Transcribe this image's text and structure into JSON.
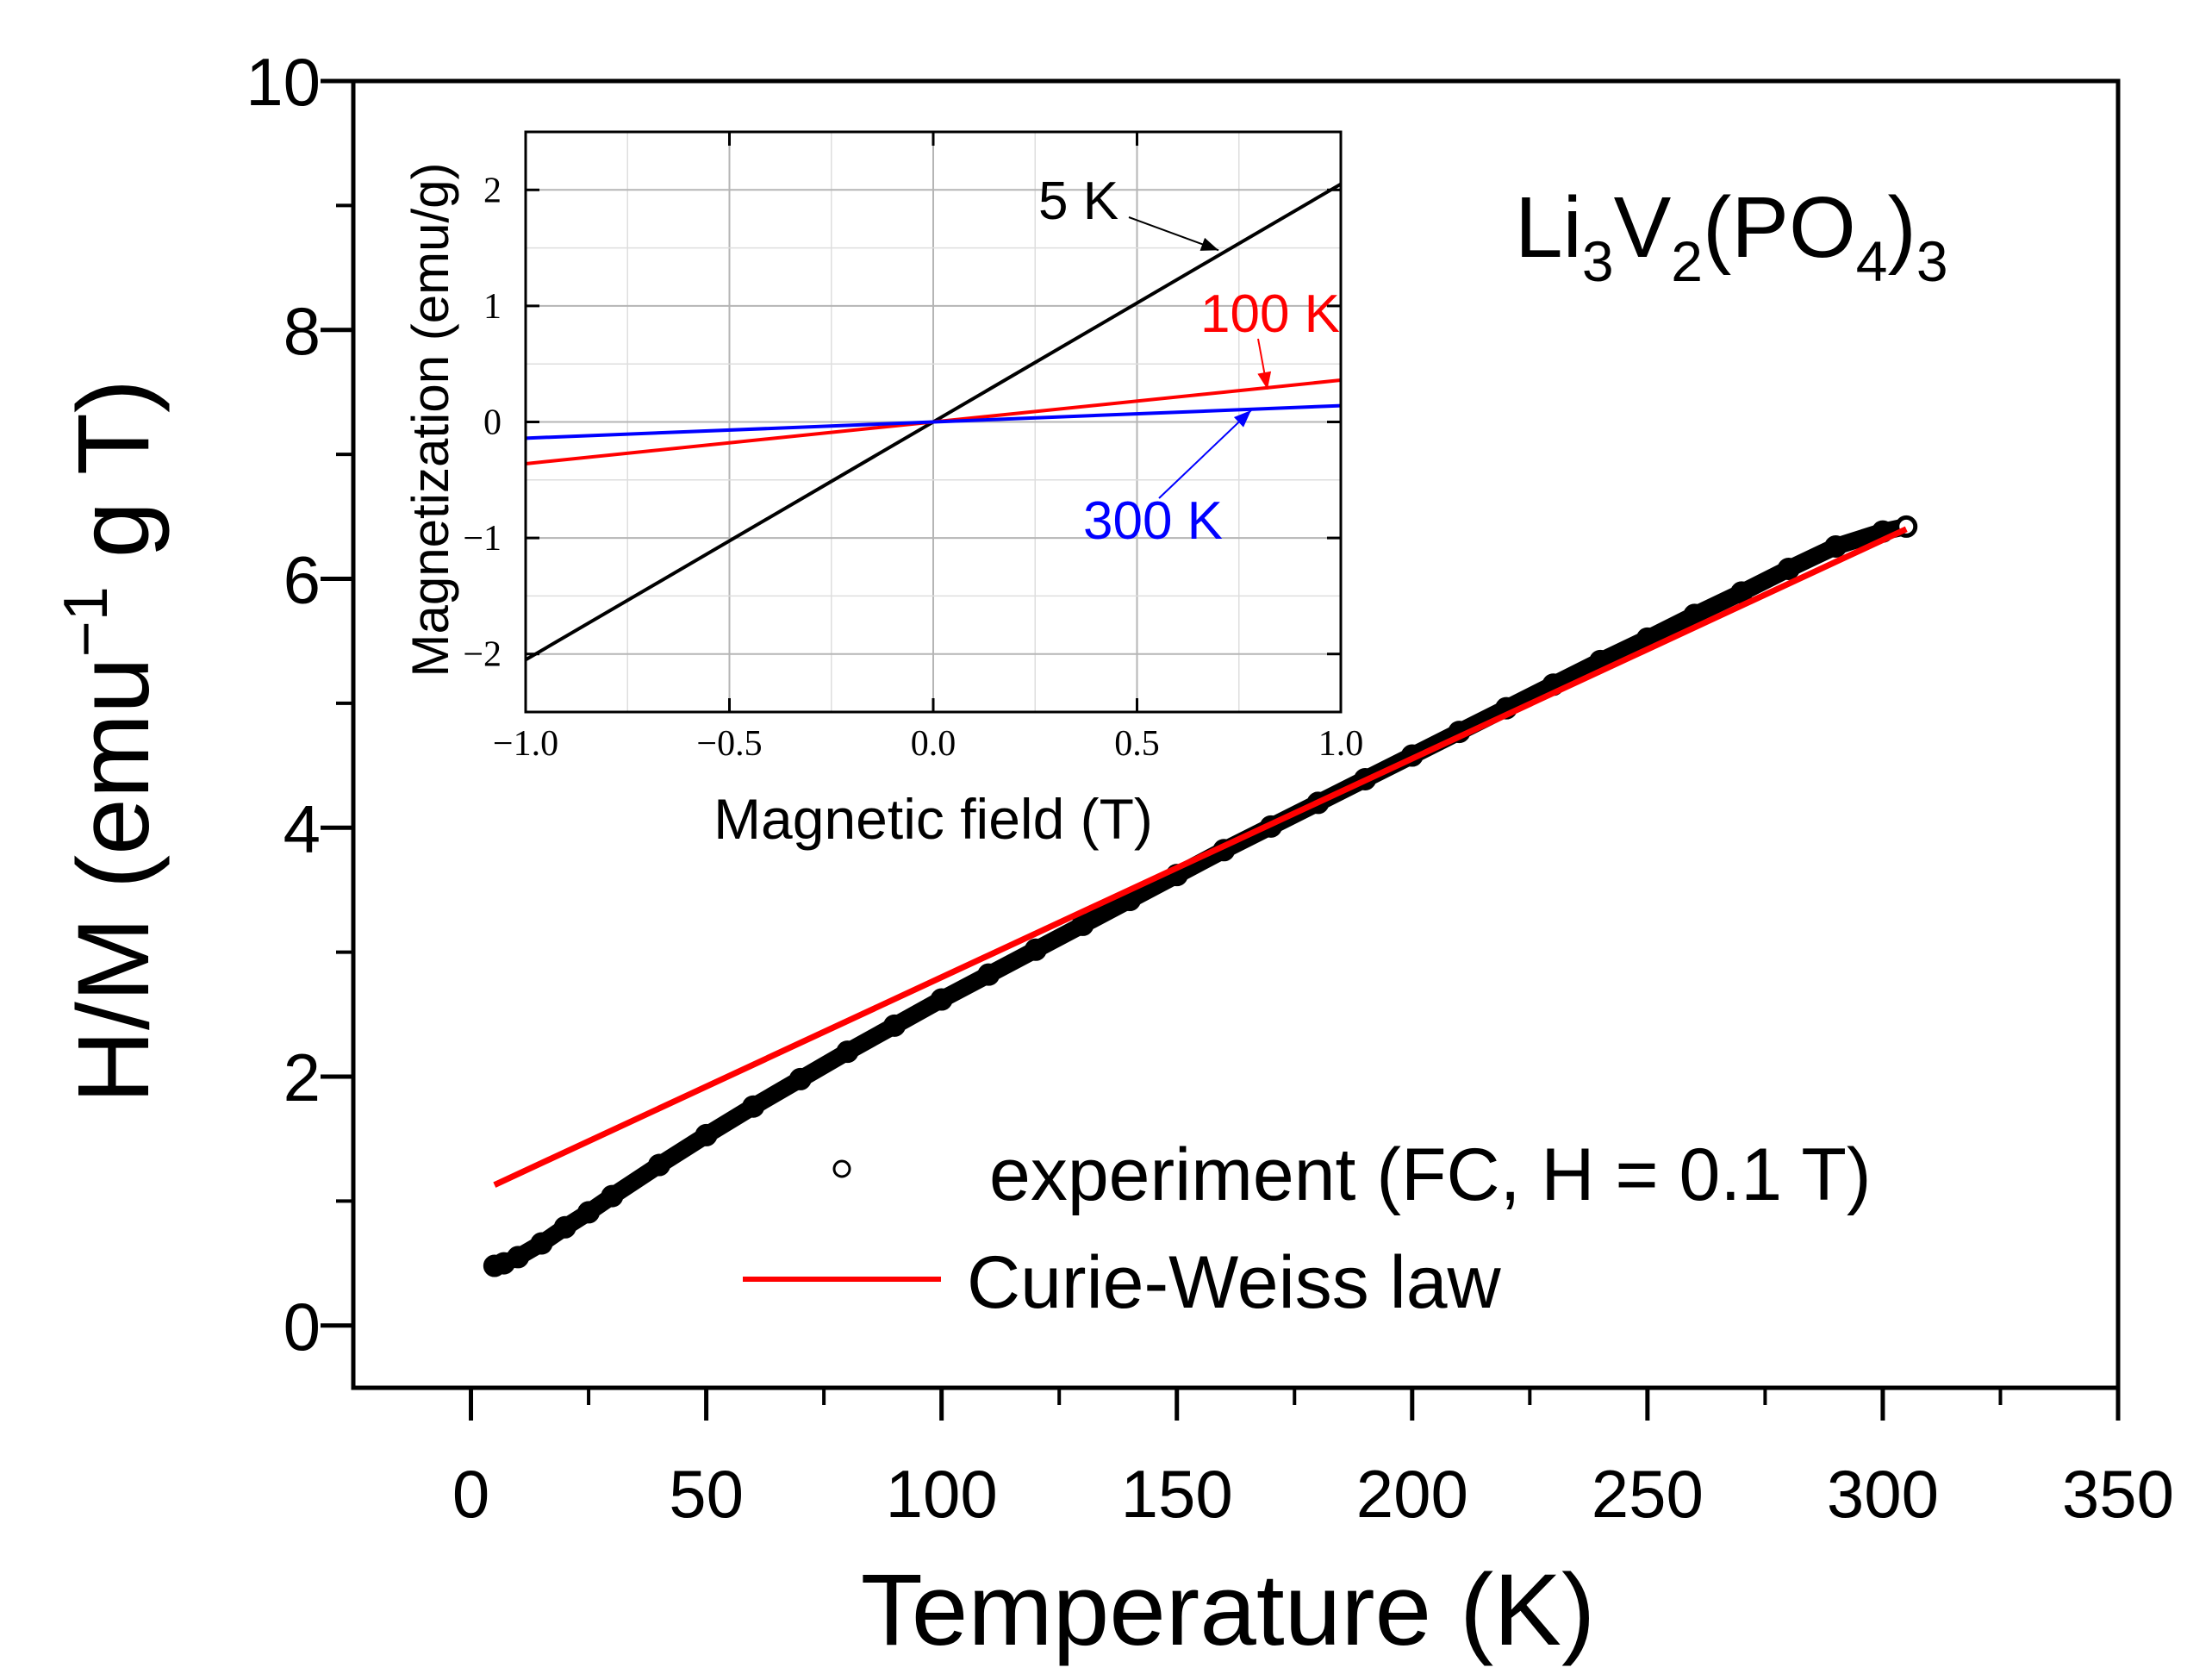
{
  "chart_data": [
    {
      "type": "scatter",
      "title": "",
      "xlabel": "Temperature (K)",
      "ylabel_base": "H/M (emu",
      "ylabel_sup": "−1",
      "ylabel_tail": " g T)",
      "xlim": [
        -25,
        350
      ],
      "ylim": [
        -0.5,
        10
      ],
      "xticks": [
        0,
        50,
        100,
        150,
        200,
        250,
        300,
        350
      ],
      "yticks": [
        0,
        2,
        4,
        6,
        8,
        10
      ],
      "xtick_labels": [
        "0",
        "50",
        "100",
        "150",
        "200",
        "250",
        "300",
        "350"
      ],
      "ytick_labels": [
        "0",
        "2",
        "4",
        "6",
        "8",
        "10"
      ],
      "compound_label": {
        "parts": [
          "Li",
          "3",
          "V",
          "2",
          "(PO",
          "4",
          ")",
          "3"
        ]
      },
      "legend": {
        "position": "bottom-right",
        "entries": [
          {
            "label": "experiment (FC, H = 0.1 T)",
            "marker": "open-circle",
            "color": "#000000"
          },
          {
            "label": "Curie-Weiss law",
            "marker": "line",
            "color": "#ff0000"
          }
        ]
      },
      "series": [
        {
          "name": "experiment (FC, H = 0.1 T)",
          "kind": "points",
          "color": "#000000",
          "x": [
            5,
            7,
            10,
            15,
            20,
            25,
            30,
            40,
            50,
            60,
            70,
            80,
            90,
            100,
            110,
            120,
            130,
            140,
            150,
            160,
            170,
            180,
            190,
            200,
            210,
            220,
            230,
            240,
            250,
            260,
            270,
            280,
            290,
            300,
            305
          ],
          "y": [
            0.48,
            0.5,
            0.55,
            0.66,
            0.79,
            0.91,
            1.04,
            1.29,
            1.53,
            1.76,
            1.98,
            2.2,
            2.41,
            2.62,
            2.82,
            3.02,
            3.22,
            3.42,
            3.62,
            3.82,
            4.01,
            4.2,
            4.39,
            4.58,
            4.77,
            4.96,
            5.15,
            5.34,
            5.52,
            5.71,
            5.89,
            6.08,
            6.26,
            6.38,
            6.42
          ]
        },
        {
          "name": "Curie-Weiss law",
          "kind": "line",
          "color": "#ff0000",
          "x": [
            5,
            305
          ],
          "y": [
            1.13,
            6.4
          ]
        }
      ]
    },
    {
      "type": "line",
      "title": "",
      "xlabel": "Magnetic field (T)",
      "ylabel": "Magnetization (emu/g)",
      "xlim": [
        -1.0,
        1.0
      ],
      "ylim": [
        -2.5,
        2.5
      ],
      "grid": true,
      "xticks": [
        -1.0,
        -0.5,
        0.0,
        0.5,
        1.0
      ],
      "yticks": [
        -2,
        -1,
        0,
        1,
        2
      ],
      "xtick_labels": [
        "−1.0",
        "−0.5",
        "0.0",
        "0.5",
        "1.0"
      ],
      "ytick_labels": [
        "−2",
        "−1",
        "0",
        "1",
        "2"
      ],
      "series": [
        {
          "name": "5 K",
          "color": "#000000",
          "x": [
            -1.0,
            1.0
          ],
          "y": [
            -2.05,
            2.05
          ]
        },
        {
          "name": "100 K",
          "color": "#ff0000",
          "x": [
            -1.0,
            1.0
          ],
          "y": [
            -0.36,
            0.36
          ]
        },
        {
          "name": "300 K",
          "color": "#0000ff",
          "x": [
            -1.0,
            1.0
          ],
          "y": [
            -0.14,
            0.14
          ]
        }
      ],
      "annotations": [
        {
          "text": "5 K",
          "color": "#000000",
          "points_to": {
            "x": 0.7,
            "y": 1.48
          }
        },
        {
          "text": "100 K",
          "color": "#ff0000",
          "points_to": {
            "x": 0.82,
            "y": 0.28
          }
        },
        {
          "text": "300 K",
          "color": "#0000ff",
          "points_to": {
            "x": 0.78,
            "y": 0.1
          }
        }
      ]
    }
  ]
}
